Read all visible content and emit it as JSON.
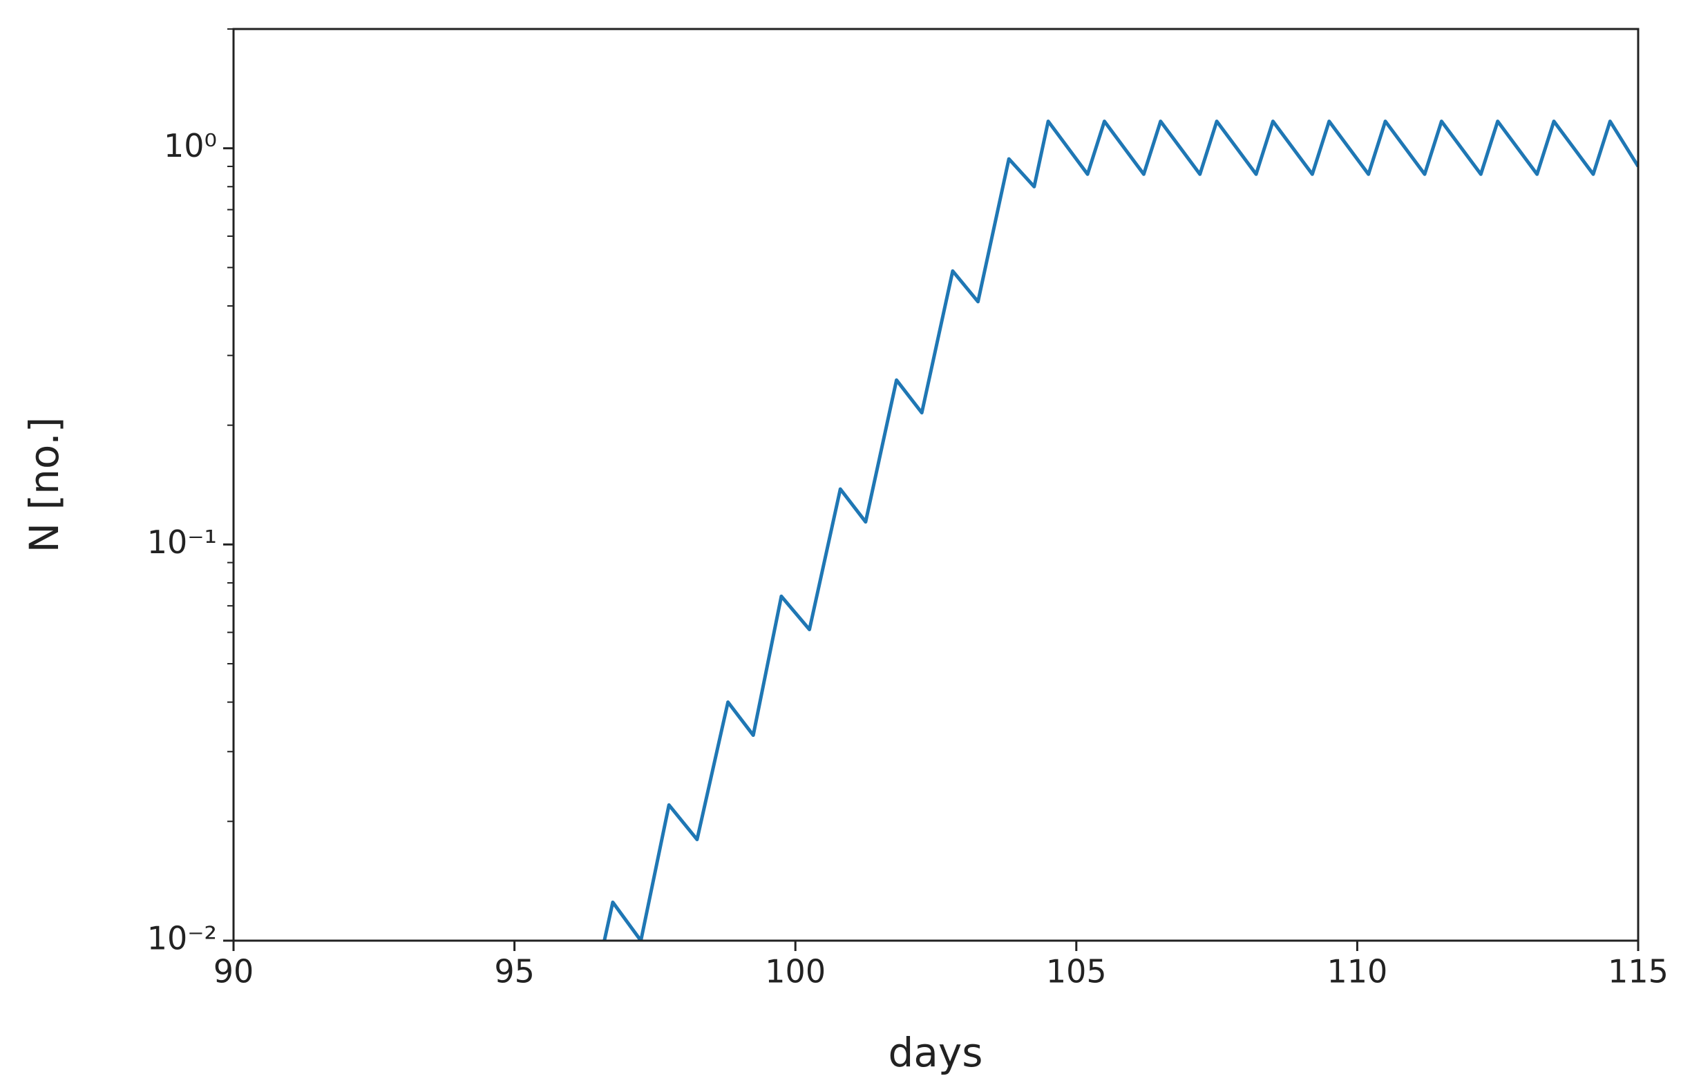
{
  "chart_data": {
    "type": "line",
    "x_label": "days",
    "y_label": "N [no.]",
    "x": [
      96.6,
      96.75,
      97.25,
      97.75,
      98.25,
      98.8,
      99.25,
      99.75,
      100.25,
      100.8,
      101.25,
      101.8,
      102.25,
      102.8,
      103.25,
      103.8,
      104.25,
      104.5,
      105.2,
      105.5,
      106.2,
      106.5,
      107.2,
      107.5,
      108.2,
      108.5,
      109.2,
      109.5,
      110.2,
      110.5,
      111.2,
      111.5,
      112.2,
      112.5,
      113.2,
      113.5,
      114.2,
      114.5,
      115
    ],
    "series": [
      {
        "color": "#1f77b4",
        "values": [
          0.01,
          0.0125,
          0.01,
          0.022,
          0.018,
          0.04,
          0.033,
          0.074,
          0.061,
          0.138,
          0.114,
          0.26,
          0.215,
          0.49,
          0.41,
          0.94,
          0.8,
          1.17,
          0.86,
          1.17,
          0.86,
          1.17,
          0.86,
          1.17,
          0.86,
          1.17,
          0.86,
          1.17,
          0.86,
          1.17,
          0.86,
          1.17,
          0.86,
          1.17,
          0.86,
          1.17,
          0.86,
          1.17,
          0.9
        ]
      }
    ],
    "xlim": [
      90,
      115
    ],
    "xticks": [
      90,
      95,
      100,
      105,
      110,
      115
    ],
    "ylim": [
      0.01,
      2
    ],
    "y_log": true,
    "yticks": [
      {
        "value": 0.01,
        "label": "10⁻²"
      },
      {
        "value": 0.1,
        "label": "10⁻¹"
      },
      {
        "value": 1,
        "label": "10⁰"
      }
    ],
    "yminorticks": [
      0.02,
      0.03,
      0.04,
      0.05,
      0.06,
      0.07,
      0.08,
      0.09,
      0.2,
      0.3,
      0.4,
      0.5,
      0.6,
      0.7,
      0.8,
      0.9,
      2
    ],
    "grid": false
  }
}
